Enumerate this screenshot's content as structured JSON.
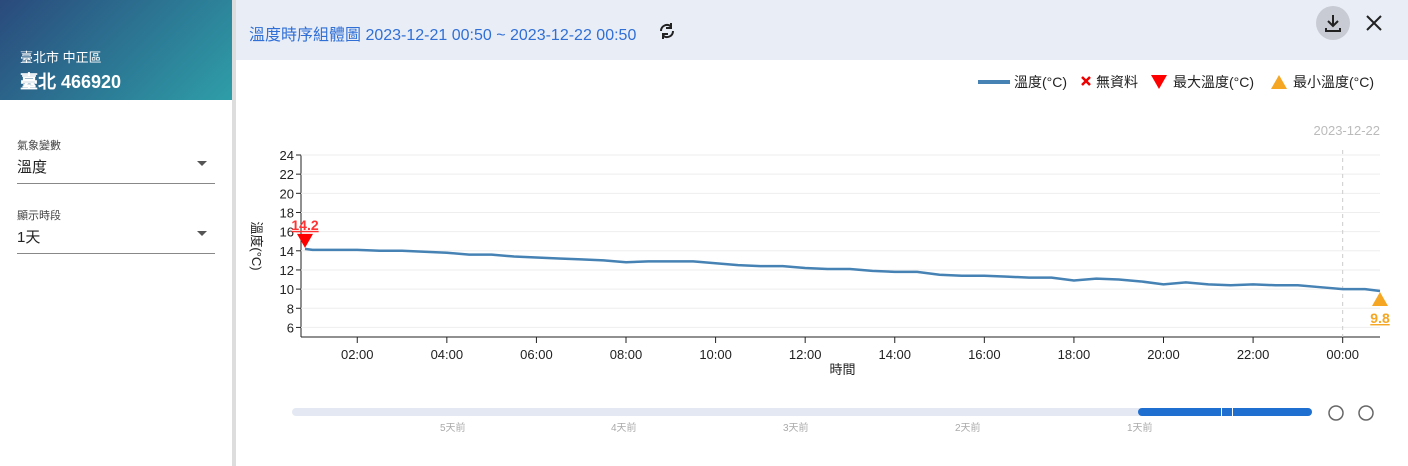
{
  "sidebar": {
    "location": "臺北市 中正區",
    "station": "臺北 466920",
    "fields": [
      {
        "label": "氣象變數",
        "value": "溫度"
      },
      {
        "label": "顯示時段",
        "value": "1天"
      }
    ]
  },
  "header": {
    "title": "溫度時序組體圖 2023-12-21 00:50 ~ 2023-12-22 00:50"
  },
  "chart_data": {
    "type": "line",
    "xlabel": "時間",
    "ylabel": "溫度(°C)",
    "x": [
      "2023-12-21 00:50",
      "2023-12-21 01:00",
      "2023-12-21 02:00",
      "2023-12-21 02:30",
      "2023-12-21 03:00",
      "2023-12-21 03:30",
      "2023-12-21 04:00",
      "2023-12-21 04:30",
      "2023-12-21 05:00",
      "2023-12-21 05:30",
      "2023-12-21 06:00",
      "2023-12-21 06:30",
      "2023-12-21 07:00",
      "2023-12-21 07:30",
      "2023-12-21 08:00",
      "2023-12-21 08:30",
      "2023-12-21 09:00",
      "2023-12-21 09:30",
      "2023-12-21 10:00",
      "2023-12-21 10:30",
      "2023-12-21 11:00",
      "2023-12-21 11:30",
      "2023-12-21 12:00",
      "2023-12-21 12:30",
      "2023-12-21 13:00",
      "2023-12-21 13:30",
      "2023-12-21 14:00",
      "2023-12-21 14:30",
      "2023-12-21 15:00",
      "2023-12-21 15:30",
      "2023-12-21 16:00",
      "2023-12-21 16:30",
      "2023-12-21 17:00",
      "2023-12-21 17:30",
      "2023-12-21 18:00",
      "2023-12-21 18:30",
      "2023-12-21 19:00",
      "2023-12-21 19:30",
      "2023-12-21 20:00",
      "2023-12-21 20:30",
      "2023-12-21 21:00",
      "2023-12-21 21:30",
      "2023-12-21 22:00",
      "2023-12-21 22:30",
      "2023-12-21 23:00",
      "2023-12-21 23:30",
      "2023-12-22 00:00",
      "2023-12-22 00:30",
      "2023-12-22 00:50"
    ],
    "series": [
      {
        "name": "溫度(°C)",
        "color": "#4682b4",
        "values": [
          14.2,
          14.1,
          14.1,
          14.0,
          14.0,
          13.9,
          13.8,
          13.6,
          13.6,
          13.4,
          13.3,
          13.2,
          13.1,
          13.0,
          12.8,
          12.9,
          12.9,
          12.9,
          12.7,
          12.5,
          12.4,
          12.4,
          12.2,
          12.1,
          12.1,
          11.9,
          11.8,
          11.8,
          11.5,
          11.4,
          11.4,
          11.3,
          11.2,
          11.2,
          10.9,
          11.1,
          11.0,
          10.8,
          10.5,
          10.7,
          10.5,
          10.4,
          10.5,
          10.4,
          10.4,
          10.2,
          10.0,
          10.0,
          9.8
        ]
      }
    ],
    "legend_extra": [
      "無資料",
      "最大溫度(°C)",
      "最小溫度(°C)"
    ],
    "max_value": 14.2,
    "max_x": "2023-12-21 00:50",
    "min_value": 9.8,
    "min_x": "2023-12-22 00:50",
    "date_marker": {
      "x": "2023-12-22 00:00",
      "label": "2023-12-22"
    },
    "xlim": [
      "2023-12-21 00:50",
      "2023-12-22 00:50"
    ],
    "xticks": [
      {
        "value": "2023-12-21 02:00",
        "label": "02:00"
      },
      {
        "value": "2023-12-21 04:00",
        "label": "04:00"
      },
      {
        "value": "2023-12-21 06:00",
        "label": "06:00"
      },
      {
        "value": "2023-12-21 08:00",
        "label": "08:00"
      },
      {
        "value": "2023-12-21 10:00",
        "label": "10:00"
      },
      {
        "value": "2023-12-21 12:00",
        "label": "12:00"
      },
      {
        "value": "2023-12-21 14:00",
        "label": "14:00"
      },
      {
        "value": "2023-12-21 16:00",
        "label": "16:00"
      },
      {
        "value": "2023-12-21 18:00",
        "label": "18:00"
      },
      {
        "value": "2023-12-21 20:00",
        "label": "20:00"
      },
      {
        "value": "2023-12-21 22:00",
        "label": "22:00"
      },
      {
        "value": "2023-12-22 00:00",
        "label": "00:00"
      }
    ],
    "ylim": [
      5,
      24
    ],
    "yticks": [
      6,
      8,
      10,
      12,
      14,
      16,
      18,
      20,
      22,
      24
    ],
    "grid": true
  },
  "slider": {
    "labels": [
      "5天前",
      "4天前",
      "3天前",
      "2天前",
      "1天前"
    ]
  }
}
